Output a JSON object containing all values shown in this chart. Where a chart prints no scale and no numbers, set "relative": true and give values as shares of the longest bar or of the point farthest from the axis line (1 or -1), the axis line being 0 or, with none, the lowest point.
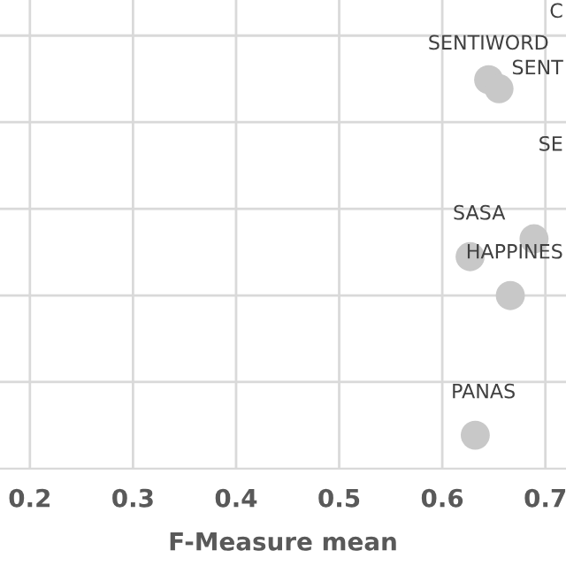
{
  "chart_data": {
    "type": "scatter",
    "xlabel": "F-Measure mean",
    "relative": true,
    "x": [
      0.645,
      0.655,
      0.689,
      0.627,
      0.666,
      0.632
    ],
    "values": [
      1.0,
      0.977,
      0.591,
      0.545,
      0.445,
      0.086
    ],
    "color": "#c8c8c8",
    "marker": "circle",
    "xlim": [
      0.171,
      0.72
    ],
    "xticks": [
      {
        "value": 0.2,
        "label": "0.2"
      },
      {
        "value": 0.3,
        "label": "0.3"
      },
      {
        "value": 0.4,
        "label": "0.4"
      },
      {
        "value": 0.5,
        "label": "0.5"
      },
      {
        "value": 0.6,
        "label": "0.6"
      },
      {
        "value": 0.7,
        "label": "0.7"
      }
    ],
    "tick_labels": "x",
    "grid": true,
    "annotations": [
      "C",
      "SENTIWORD",
      "SENT",
      "SE",
      "SASA",
      "HAPPINES",
      "PANAS"
    ]
  }
}
